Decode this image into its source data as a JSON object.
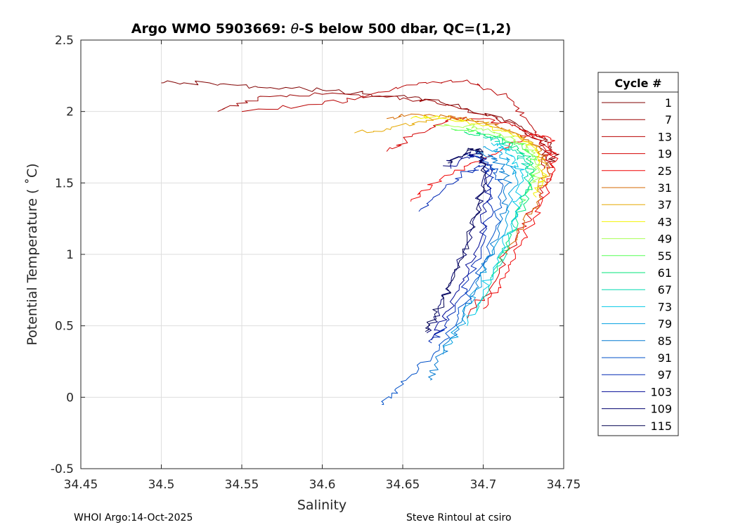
{
  "chart_data": {
    "type": "line",
    "title_prefix": "Argo WMO 5903669: ",
    "title_theta": "θ",
    "title_suffix": "-S below 500 dbar,  QC=(1,2)",
    "xlabel": "Salinity",
    "ylabel": "Potential Temperature ( ˚C)",
    "xlim": [
      34.45,
      34.75
    ],
    "ylim": [
      -0.5,
      2.5
    ],
    "xticks": [
      34.45,
      34.5,
      34.55,
      34.6,
      34.65,
      34.7,
      34.75
    ],
    "xtick_labels": [
      "34.45",
      "34.5",
      "34.55",
      "34.6",
      "34.65",
      "34.7",
      "34.75"
    ],
    "yticks": [
      -0.5,
      0,
      0.5,
      1,
      1.5,
      2,
      2.5
    ],
    "ytick_labels": [
      "-0.5",
      "0",
      "0.5",
      "1",
      "1.5",
      "2",
      "2.5"
    ],
    "grid": true,
    "legend_title": "Cycle #",
    "legend_position": "right-outside",
    "series": [
      {
        "name": "1",
        "color": "#800000",
        "x": [
          34.5,
          34.53,
          34.56,
          34.6,
          34.63,
          34.66,
          34.69,
          34.72,
          34.74,
          34.745,
          34.74
        ],
        "y": [
          2.2,
          2.2,
          2.17,
          2.15,
          2.12,
          2.1,
          2.02,
          1.92,
          1.8,
          1.7,
          1.62
        ]
      },
      {
        "name": "7",
        "color": "#9b0000",
        "x": [
          34.535,
          34.56,
          34.6,
          34.64,
          34.67,
          34.7,
          34.72,
          34.735,
          34.74
        ],
        "y": [
          2.0,
          2.1,
          2.12,
          2.1,
          2.07,
          1.98,
          1.9,
          1.78,
          1.65
        ]
      },
      {
        "name": "13",
        "color": "#b80000",
        "x": [
          34.55,
          34.6,
          34.63,
          34.66,
          34.69,
          34.715,
          34.73,
          34.74,
          34.738
        ],
        "y": [
          2.0,
          2.05,
          2.12,
          2.2,
          2.22,
          2.1,
          1.9,
          1.75,
          1.6
        ]
      },
      {
        "name": "19",
        "color": "#d40000",
        "x": [
          34.64,
          34.66,
          34.68,
          34.7,
          34.72,
          34.735,
          34.742,
          34.74,
          34.73,
          34.72,
          34.71,
          34.7,
          34.69
        ],
        "y": [
          1.72,
          1.85,
          1.95,
          1.95,
          1.9,
          1.8,
          1.65,
          1.5,
          1.3,
          1.1,
          0.9,
          0.7,
          0.55
        ]
      },
      {
        "name": "25",
        "color": "#f00000",
        "x": [
          34.655,
          34.67,
          34.69,
          34.71,
          34.73,
          34.742,
          34.745,
          34.74,
          34.73,
          34.72,
          34.71,
          34.7
        ],
        "y": [
          1.37,
          1.5,
          1.62,
          1.72,
          1.85,
          1.8,
          1.65,
          1.45,
          1.2,
          1.0,
          0.8,
          0.62
        ]
      },
      {
        "name": "31",
        "color": "#d46a00",
        "x": [
          34.64,
          34.66,
          34.68,
          34.7,
          34.72,
          34.735,
          34.74,
          34.735,
          34.725,
          34.715
        ],
        "y": [
          1.95,
          1.98,
          1.97,
          1.93,
          1.85,
          1.75,
          1.6,
          1.4,
          1.2,
          1.0
        ]
      },
      {
        "name": "37",
        "color": "#e6a800",
        "x": [
          34.62,
          34.64,
          34.66,
          34.68,
          34.7,
          34.72,
          34.733,
          34.738,
          34.735
        ],
        "y": [
          1.85,
          1.88,
          1.93,
          1.96,
          1.92,
          1.85,
          1.75,
          1.6,
          1.45
        ]
      },
      {
        "name": "43",
        "color": "#f2f200",
        "x": [
          34.655,
          34.67,
          34.69,
          34.71,
          34.725,
          34.735,
          34.737,
          34.733
        ],
        "y": [
          1.95,
          1.97,
          1.93,
          1.87,
          1.8,
          1.7,
          1.55,
          1.4
        ]
      },
      {
        "name": "49",
        "color": "#aaff55",
        "x": [
          34.67,
          34.69,
          34.705,
          34.72,
          34.73,
          34.734,
          34.73
        ],
        "y": [
          1.9,
          1.9,
          1.86,
          1.8,
          1.72,
          1.6,
          1.45
        ]
      },
      {
        "name": "55",
        "color": "#55ff55",
        "x": [
          34.68,
          34.695,
          34.71,
          34.722,
          34.73,
          34.732,
          34.728,
          34.72
        ],
        "y": [
          1.88,
          1.87,
          1.82,
          1.77,
          1.7,
          1.6,
          1.45,
          1.3
        ]
      },
      {
        "name": "61",
        "color": "#00e67a",
        "x": [
          34.69,
          34.7,
          34.712,
          34.722,
          34.728,
          34.73,
          34.725,
          34.716,
          34.705
        ],
        "y": [
          1.85,
          1.84,
          1.8,
          1.74,
          1.66,
          1.55,
          1.35,
          1.1,
          0.85
        ]
      },
      {
        "name": "67",
        "color": "#00d9b0",
        "x": [
          34.7,
          34.71,
          34.72,
          34.726,
          34.728,
          34.724,
          34.716,
          34.706,
          34.696
        ],
        "y": [
          1.82,
          1.79,
          1.73,
          1.65,
          1.55,
          1.35,
          1.1,
          0.85,
          0.6
        ]
      },
      {
        "name": "73",
        "color": "#00c8e6",
        "x": [
          34.705,
          34.714,
          34.72,
          34.724,
          34.72,
          34.71,
          34.7,
          34.69
        ],
        "y": [
          1.78,
          1.74,
          1.66,
          1.55,
          1.3,
          1.0,
          0.75,
          0.5
        ]
      },
      {
        "name": "79",
        "color": "#00a0e0",
        "x": [
          34.7,
          34.71,
          34.716,
          34.72,
          34.716,
          34.706,
          34.695,
          34.685,
          34.675
        ],
        "y": [
          1.75,
          1.72,
          1.65,
          1.55,
          1.3,
          1.0,
          0.75,
          0.5,
          0.3
        ]
      },
      {
        "name": "85",
        "color": "#0078d0",
        "x": [
          34.695,
          34.706,
          34.712,
          34.716,
          34.712,
          34.702,
          34.692,
          34.682,
          34.672,
          34.667
        ],
        "y": [
          1.72,
          1.68,
          1.6,
          1.5,
          1.25,
          0.95,
          0.7,
          0.45,
          0.25,
          0.12
        ]
      },
      {
        "name": "91",
        "color": "#0050c8",
        "x": [
          34.69,
          34.7,
          34.708,
          34.712,
          34.708,
          34.698,
          34.688,
          34.676,
          34.66,
          34.645,
          34.637
        ],
        "y": [
          1.7,
          1.65,
          1.57,
          1.47,
          1.2,
          0.9,
          0.65,
          0.4,
          0.2,
          0.05,
          -0.05
        ]
      },
      {
        "name": "97",
        "color": "#0028b4",
        "x": [
          34.66,
          34.675,
          34.69,
          34.7,
          34.705,
          34.703,
          34.695,
          34.686,
          34.676,
          34.668
        ],
        "y": [
          1.3,
          1.45,
          1.58,
          1.62,
          1.52,
          1.25,
          0.95,
          0.7,
          0.5,
          0.38
        ]
      },
      {
        "name": "103",
        "color": "#000a96",
        "x": [
          34.68,
          34.692,
          34.7,
          34.704,
          34.702,
          34.694,
          34.685,
          34.676,
          34.668
        ],
        "y": [
          1.6,
          1.7,
          1.67,
          1.55,
          1.3,
          1.0,
          0.75,
          0.55,
          0.4
        ]
      },
      {
        "name": "109",
        "color": "#00006e",
        "x": [
          34.675,
          34.688,
          34.697,
          34.7,
          34.697,
          34.689,
          34.68,
          34.672,
          34.665
        ],
        "y": [
          1.62,
          1.7,
          1.72,
          1.6,
          1.35,
          1.05,
          0.8,
          0.6,
          0.45
        ]
      },
      {
        "name": "115",
        "color": "#000050",
        "x": [
          34.678,
          34.69,
          34.698,
          34.701,
          34.698,
          34.69,
          34.681,
          34.672,
          34.664
        ],
        "y": [
          1.64,
          1.73,
          1.74,
          1.62,
          1.38,
          1.08,
          0.82,
          0.62,
          0.46
        ]
      }
    ]
  },
  "footer": {
    "left": "WHOI Argo:14-Oct-2025",
    "right": "Steve Rintoul at csiro"
  }
}
